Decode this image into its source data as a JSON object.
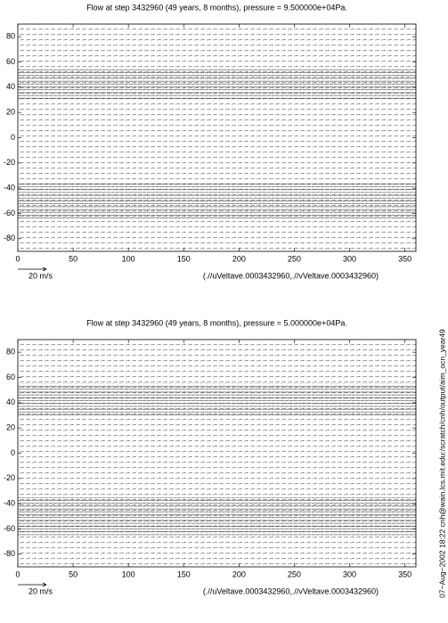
{
  "chart_data": [
    {
      "type": "quiver",
      "title": "Flow at step 3432960 (49 years, 8 months), pressure = 9.500000e+04Pa.",
      "xlim": [
        0,
        360
      ],
      "xticks": [
        0,
        50,
        100,
        150,
        200,
        250,
        300,
        350
      ],
      "ylim": [
        -90,
        90
      ],
      "yticks": [
        -80,
        -60,
        -40,
        -20,
        0,
        20,
        40,
        60,
        80
      ],
      "scale_label": "20 m/s",
      "source_label": "(.//uVeltave.0003432960,.//vVeltave.0003432960)"
    },
    {
      "type": "quiver",
      "title": "Flow at step 3432960 (49 years, 8 months), pressure = 5.000000e+04Pa.",
      "xlim": [
        0,
        360
      ],
      "xticks": [
        0,
        50,
        100,
        150,
        200,
        250,
        300,
        350
      ],
      "ylim": [
        -90,
        90
      ],
      "yticks": [
        -80,
        -60,
        -40,
        -20,
        0,
        20,
        40,
        60,
        80
      ],
      "scale_label": "20 m/s",
      "source_label": "(.//uVeltave.0003432960,.//vVeltave.0003432960)"
    }
  ],
  "side_note": "07−Aug−2002 18:22 cnh@wain.lcs.mit.edu:/scratch/cnh/output/aim_ocn_year49"
}
